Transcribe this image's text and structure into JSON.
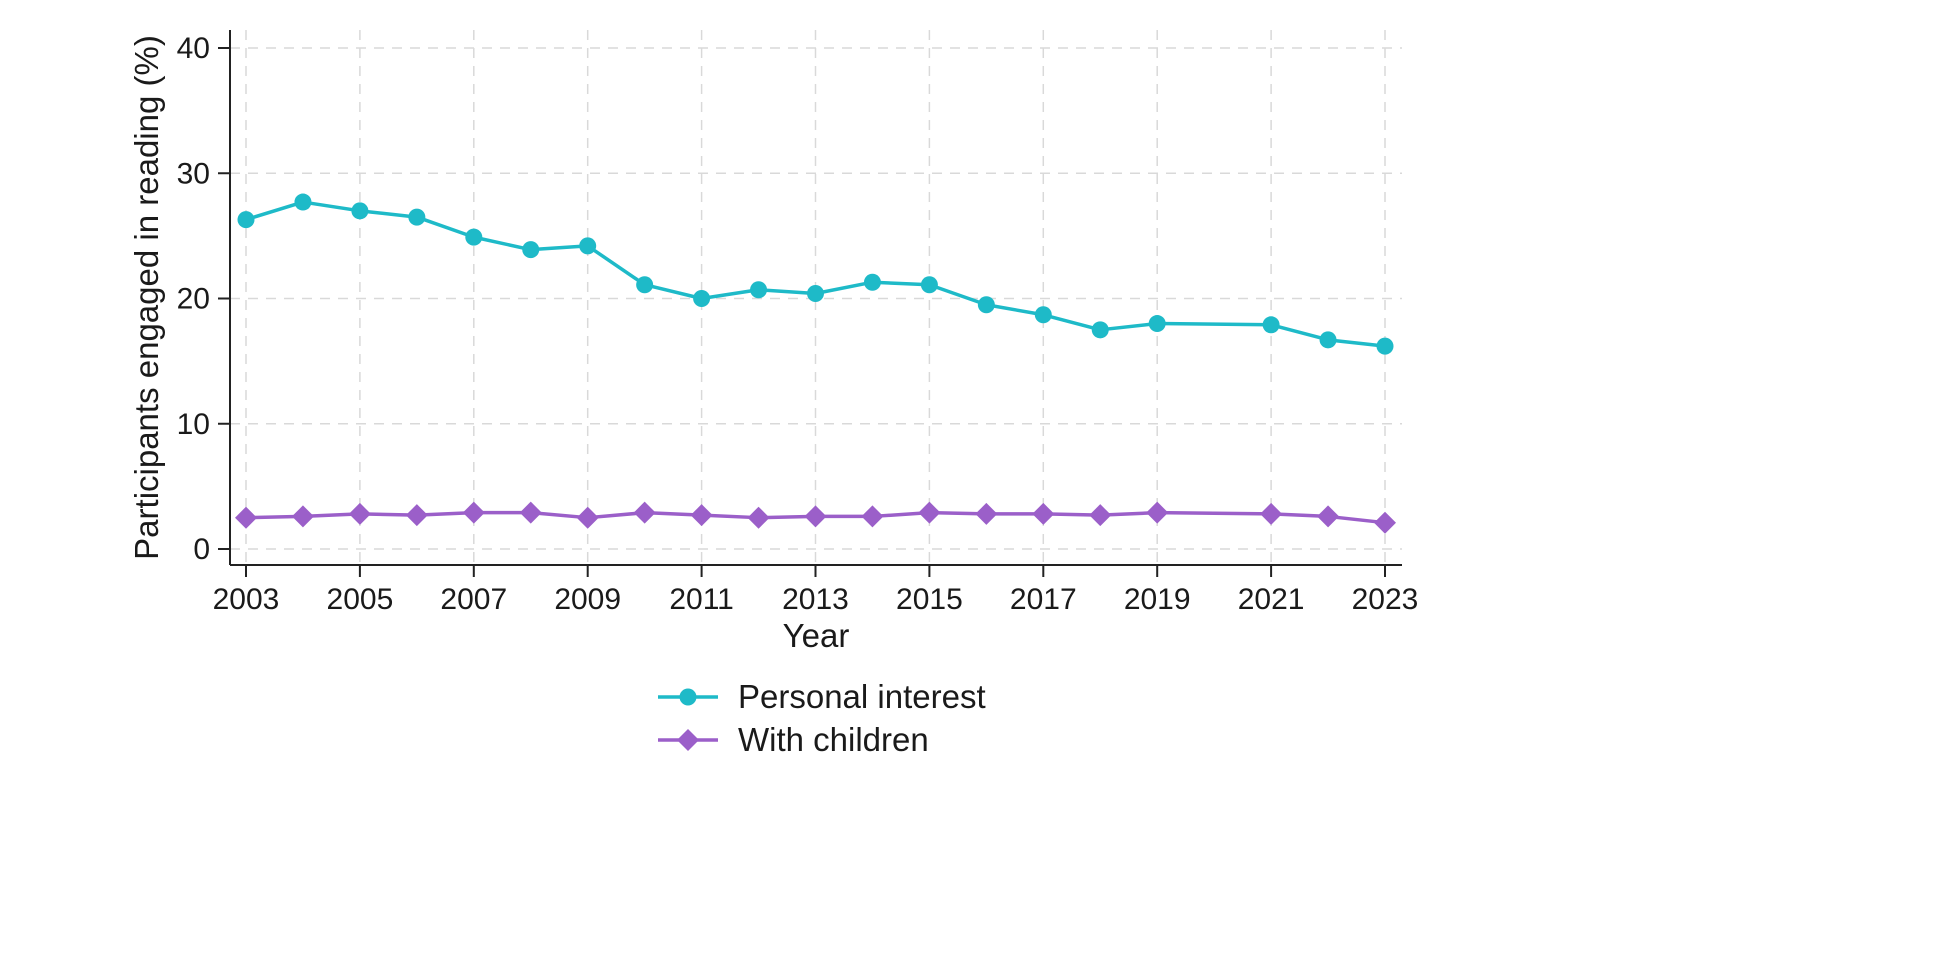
{
  "chart_data": {
    "type": "line",
    "xlabel": "Year",
    "ylabel": "Participants engaged in reading (%)",
    "xlim": [
      2003,
      2023
    ],
    "ylim": [
      0,
      40
    ],
    "x_ticks": [
      2003,
      2005,
      2007,
      2009,
      2011,
      2013,
      2015,
      2017,
      2019,
      2021,
      2023
    ],
    "y_ticks": [
      0,
      10,
      20,
      30,
      40
    ],
    "grid": true,
    "legend_position": "bottom-center",
    "series": [
      {
        "name": "Personal interest",
        "color": "#1ebac8",
        "marker": "circle",
        "x": [
          2003,
          2004,
          2005,
          2006,
          2007,
          2008,
          2009,
          2010,
          2011,
          2012,
          2013,
          2014,
          2015,
          2016,
          2017,
          2018,
          2019,
          2021,
          2022,
          2023
        ],
        "y": [
          26.3,
          27.7,
          27.0,
          26.5,
          24.9,
          23.9,
          24.2,
          21.1,
          20.0,
          20.7,
          20.4,
          21.3,
          21.1,
          19.5,
          18.7,
          17.5,
          18.0,
          17.9,
          16.7,
          16.2
        ]
      },
      {
        "name": "With children",
        "color": "#9b5fc9",
        "marker": "diamond",
        "x": [
          2003,
          2004,
          2005,
          2006,
          2007,
          2008,
          2009,
          2010,
          2011,
          2012,
          2013,
          2014,
          2015,
          2016,
          2017,
          2018,
          2019,
          2021,
          2022,
          2023
        ],
        "y": [
          2.5,
          2.6,
          2.8,
          2.7,
          2.9,
          2.9,
          2.5,
          2.9,
          2.7,
          2.5,
          2.6,
          2.6,
          2.9,
          2.8,
          2.8,
          2.7,
          2.9,
          2.8,
          2.6,
          2.1
        ]
      }
    ]
  }
}
